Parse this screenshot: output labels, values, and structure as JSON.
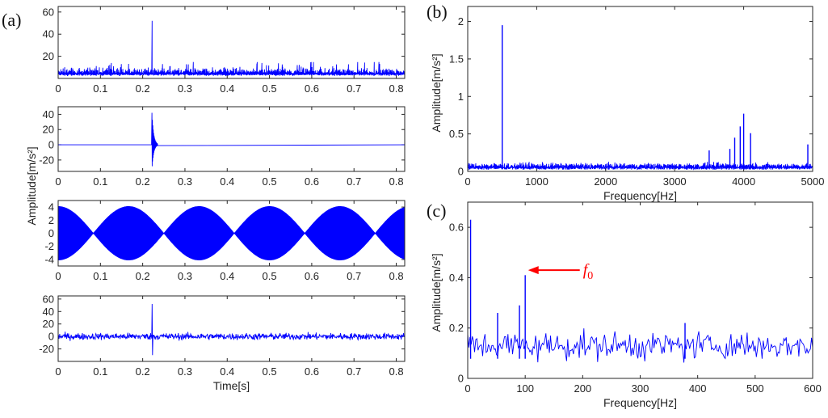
{
  "colors": {
    "signal": "#0000ff",
    "arrow": "#ff0000",
    "axis": "#262626"
  },
  "chart_data": [
    {
      "id": "a1",
      "type": "line",
      "panel_label": "(a)",
      "xlim": [
        0,
        0.82
      ],
      "ylim": [
        0,
        65
      ],
      "xticks": [
        0,
        0.1,
        0.2,
        0.3,
        0.4,
        0.5,
        0.6,
        0.7,
        0.8
      ],
      "xtick_labels": [
        "0",
        "0.1",
        "0.2",
        "0.3",
        "0.4",
        "0.5",
        "0.6",
        "0.7",
        "0.8"
      ],
      "yticks": [
        20,
        40,
        60
      ],
      "ytick_labels": [
        "20",
        "40",
        "60"
      ],
      "xlabel": "",
      "ylabel": "",
      "signal": {
        "kind": "abs_noise",
        "baseline": 4,
        "spread": 9,
        "spike_x": 0.222,
        "spike_peak": 52,
        "n_points": 900
      }
    },
    {
      "id": "a2",
      "type": "line",
      "xlim": [
        0,
        0.82
      ],
      "ylim": [
        -35,
        50
      ],
      "xticks": [
        0,
        0.1,
        0.2,
        0.3,
        0.4,
        0.5,
        0.6,
        0.7,
        0.8
      ],
      "xtick_labels": [
        "0",
        "0.1",
        "0.2",
        "0.3",
        "0.4",
        "0.5",
        "0.6",
        "0.7",
        "0.8"
      ],
      "yticks": [
        -20,
        0,
        20,
        40
      ],
      "ytick_labels": [
        "-20",
        "0",
        "20",
        "40"
      ],
      "xlabel": "",
      "ylabel": "",
      "signal": {
        "kind": "impulse",
        "spike_x": 0.222,
        "spike_peak": 42,
        "spike_trough": -32,
        "decay": 0.004
      }
    },
    {
      "id": "a3",
      "type": "area",
      "xlim": [
        0,
        0.82
      ],
      "ylim": [
        -5,
        5
      ],
      "xticks": [
        0,
        0.1,
        0.2,
        0.3,
        0.4,
        0.5,
        0.6,
        0.7,
        0.8
      ],
      "xtick_labels": [
        "0",
        "0.1",
        "0.2",
        "0.3",
        "0.4",
        "0.5",
        "0.6",
        "0.7",
        "0.8"
      ],
      "yticks": [
        -4,
        -2,
        0,
        2,
        4
      ],
      "ytick_labels": [
        "-4",
        "-2",
        "0",
        "2",
        "4"
      ],
      "xlabel": "",
      "ylabel": "",
      "signal": {
        "kind": "beat_envelope",
        "amplitude": 4.1,
        "envelope_period": 0.1667,
        "envelope_phase": 0.0833
      }
    },
    {
      "id": "a4",
      "type": "line",
      "xlim": [
        0,
        0.82
      ],
      "ylim": [
        -40,
        65
      ],
      "xticks": [
        0,
        0.1,
        0.2,
        0.3,
        0.4,
        0.5,
        0.6,
        0.7,
        0.8
      ],
      "xtick_labels": [
        "0",
        "0.1",
        "0.2",
        "0.3",
        "0.4",
        "0.5",
        "0.6",
        "0.7",
        "0.8"
      ],
      "yticks": [
        -20,
        0,
        20,
        40,
        60
      ],
      "ytick_labels": [
        "-20",
        "0",
        "20",
        "40",
        "60"
      ],
      "xlabel": "Time[s]",
      "ylabel": "",
      "signal": {
        "kind": "noisy",
        "spread": 9,
        "spike_x": 0.222,
        "spike_peak": 52,
        "spike_trough": -30,
        "n_points": 900
      }
    },
    {
      "id": "b",
      "type": "line",
      "panel_label": "(b)",
      "xlim": [
        0,
        5000
      ],
      "ylim": [
        0,
        2.2
      ],
      "xticks": [
        0,
        1000,
        2000,
        3000,
        4000,
        5000
      ],
      "xtick_labels": [
        "0",
        "1000",
        "2000",
        "3000",
        "4000",
        "5000"
      ],
      "yticks": [
        0,
        0.5,
        1,
        1.5,
        2
      ],
      "ytick_labels": [
        "0",
        "0.5",
        "1",
        "1.5",
        "2"
      ],
      "xlabel": "Frequency[Hz]",
      "ylabel": "",
      "signal": {
        "kind": "spectrum",
        "floor": 0.08,
        "spread": 0.07,
        "n_points": 600,
        "peaks": [
          {
            "x": 500,
            "y": 1.95
          },
          {
            "x": 3870,
            "y": 0.45
          },
          {
            "x": 3950,
            "y": 0.6
          },
          {
            "x": 4000,
            "y": 0.77
          },
          {
            "x": 4100,
            "y": 0.51
          },
          {
            "x": 3500,
            "y": 0.28
          },
          {
            "x": 3800,
            "y": 0.3
          },
          {
            "x": 4930,
            "y": 0.36
          }
        ]
      }
    },
    {
      "id": "c",
      "type": "line",
      "panel_label": "(c)",
      "xlim": [
        0,
        600
      ],
      "ylim": [
        0,
        0.7
      ],
      "xticks": [
        0,
        100,
        200,
        300,
        400,
        500,
        600
      ],
      "xtick_labels": [
        "0",
        "100",
        "200",
        "300",
        "400",
        "500",
        "600"
      ],
      "yticks": [
        0,
        0.2,
        0.4,
        0.6
      ],
      "ytick_labels": [
        "0",
        "0.2",
        "0.4",
        "0.6"
      ],
      "xlabel": "Frequency[Hz]",
      "ylabel": "",
      "signal": {
        "kind": "spectrum",
        "floor": 0.13,
        "spread": 0.11,
        "n_points": 300,
        "peaks": [
          {
            "x": 5,
            "y": 0.63
          },
          {
            "x": 100,
            "y": 0.41
          },
          {
            "x": 90,
            "y": 0.29
          },
          {
            "x": 378,
            "y": 0.22
          },
          {
            "x": 52,
            "y": 0.26
          }
        ]
      },
      "annotation": {
        "text": "0",
        "point_x": 105,
        "point_y": 0.43
      }
    }
  ],
  "shared_labels": {
    "left_ylabel": "Amplitude[m/s²]",
    "right_b_ylabel": "Amplitude[m/s²]",
    "right_c_ylabel": "Amplitude[m/s²]"
  }
}
